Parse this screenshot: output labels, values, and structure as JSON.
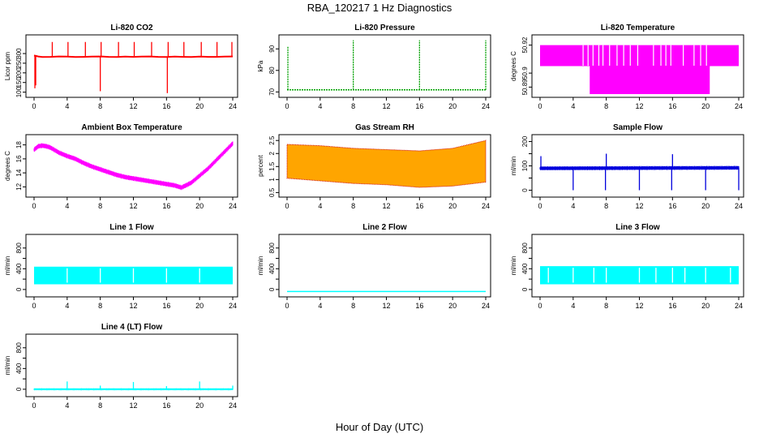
{
  "title": "RBA_120217  1 Hz Diagnostics",
  "xlabel": "Hour of Day (UTC)",
  "x_ticks": [
    0,
    4,
    8,
    12,
    16,
    20,
    24
  ],
  "chart_data": [
    {
      "id": "co2",
      "type": "line",
      "title": "Li-820 CO2",
      "ylabel": "Licor ppm",
      "color": "#ff0000",
      "xlim": [
        0,
        24
      ],
      "ylim": [
        90,
        380
      ],
      "yticks": [
        100,
        150,
        200,
        250,
        300
      ],
      "series": [
        {
          "x": [
            0,
            0.5,
            1,
            2,
            3,
            4,
            5,
            6,
            7,
            8,
            9,
            10,
            11,
            12,
            13,
            14,
            15,
            16,
            17,
            18,
            19,
            20,
            21,
            22,
            23,
            24
          ],
          "y": [
            290,
            285,
            282,
            283,
            285,
            284,
            282,
            283,
            284,
            285,
            283,
            282,
            284,
            283,
            284,
            285,
            283,
            282,
            284,
            283,
            282,
            284,
            283,
            283,
            284,
            285
          ]
        }
      ],
      "spikes": [
        {
          "x": 0.1,
          "y": 120
        },
        {
          "x": 0.2,
          "y": 135
        },
        {
          "x": 2.2,
          "y": 360
        },
        {
          "x": 4.1,
          "y": 360
        },
        {
          "x": 6.2,
          "y": 360
        },
        {
          "x": 8.0,
          "y": 105
        },
        {
          "x": 8.1,
          "y": 360
        },
        {
          "x": 10.2,
          "y": 360
        },
        {
          "x": 12.1,
          "y": 360
        },
        {
          "x": 14.2,
          "y": 360
        },
        {
          "x": 16.1,
          "y": 95
        },
        {
          "x": 16.2,
          "y": 360
        },
        {
          "x": 18.1,
          "y": 360
        },
        {
          "x": 20.2,
          "y": 360
        },
        {
          "x": 22.1,
          "y": 360
        },
        {
          "x": 23.9,
          "y": 360
        }
      ]
    },
    {
      "id": "pressure",
      "type": "line",
      "title": "Li-820 Pressure",
      "ylabel": "kPa",
      "color": "#00a000",
      "xlim": [
        0,
        24
      ],
      "ylim": [
        69,
        95
      ],
      "yticks": [
        70,
        80,
        90
      ],
      "series": [
        {
          "x": [
            0,
            24
          ],
          "y": [
            71,
            71
          ]
        }
      ],
      "spikes": [
        {
          "x": 0.1,
          "y": 91
        },
        {
          "x": 8.0,
          "y": 94
        },
        {
          "x": 16.0,
          "y": 94
        },
        {
          "x": 24.0,
          "y": 94
        }
      ]
    },
    {
      "id": "licor_temp",
      "type": "area",
      "title": "Li-820 Temperature",
      "ylabel": "degrees C",
      "color": "#ff00ff",
      "xlim": [
        0,
        24
      ],
      "ylim": [
        50.885,
        50.925
      ],
      "yticks": [
        50.89,
        50.9,
        50.92
      ],
      "ytick_labels": [
        "50.89",
        "50.9",
        "50.92"
      ],
      "levels": {
        "upper": 50.92,
        "mid": 50.905,
        "lower": 50.885
      },
      "lower_band": [
        6,
        20.5
      ],
      "gaps": [
        5.2,
        5.8,
        6.4,
        7.1,
        7.6,
        8.4,
        9.3,
        10.1,
        10.9,
        11.8,
        13.7,
        14.6,
        15.2,
        15.8,
        17.3,
        18.6,
        19.4,
        20.1
      ]
    },
    {
      "id": "ambient_temp",
      "type": "line",
      "title": "Ambient Box Temperature",
      "ylabel": "degrees C",
      "color": "#ff00ff",
      "xlim": [
        0,
        24
      ],
      "ylim": [
        11,
        19
      ],
      "yticks": [
        12,
        14,
        16,
        18
      ],
      "series": [
        {
          "x": [
            0,
            0.5,
            1,
            1.5,
            2,
            3,
            4,
            5,
            6,
            7,
            8,
            9,
            10,
            11,
            12,
            13,
            14,
            15,
            16,
            17,
            17.8,
            18.5,
            19,
            20,
            21,
            22,
            23,
            24
          ],
          "y": [
            17.3,
            17.8,
            17.9,
            17.8,
            17.6,
            16.9,
            16.4,
            16.0,
            15.4,
            14.9,
            14.5,
            14.1,
            13.7,
            13.4,
            13.2,
            13.0,
            12.8,
            12.6,
            12.4,
            12.2,
            11.9,
            12.3,
            12.6,
            13.6,
            14.6,
            15.8,
            17.0,
            18.2
          ]
        }
      ],
      "band": 0.35
    },
    {
      "id": "rh",
      "type": "area",
      "title": "Gas Stream RH",
      "ylabel": "percent",
      "color": "#ffa500",
      "edge_color": "#cc0000",
      "xlim": [
        0,
        24
      ],
      "ylim": [
        0.45,
        2.6
      ],
      "yticks": [
        0.5,
        1.0,
        1.5,
        2.0,
        2.5
      ],
      "ytick_labels": [
        "0.5",
        "1",
        "1.5",
        "2",
        "2.5"
      ],
      "upper": {
        "x": [
          0,
          4,
          8,
          12,
          16,
          20,
          24
        ],
        "y": [
          2.35,
          2.3,
          2.2,
          2.15,
          2.1,
          2.2,
          2.5
        ]
      },
      "lower": {
        "x": [
          0,
          4,
          8,
          12,
          16,
          20,
          24
        ],
        "y": [
          1.05,
          0.95,
          0.85,
          0.8,
          0.7,
          0.75,
          0.9
        ]
      }
    },
    {
      "id": "sample_flow",
      "type": "line",
      "title": "Sample Flow",
      "ylabel": "ml/min",
      "color": "#0000dd",
      "xlim": [
        0,
        24
      ],
      "ylim": [
        -15,
        215
      ],
      "yticks": [
        0,
        50,
        100,
        150,
        200
      ],
      "ytick_labels": [
        "0",
        "",
        "100",
        "",
        "200"
      ],
      "series": [
        {
          "x": [
            0,
            24
          ],
          "y": [
            90,
            92
          ]
        }
      ],
      "band": 8,
      "spikes": [
        {
          "x": 0.1,
          "y": 140
        },
        {
          "x": 4.0,
          "y": 0
        },
        {
          "x": 7.9,
          "y": 0
        },
        {
          "x": 8.0,
          "y": 150
        },
        {
          "x": 12.0,
          "y": 0
        },
        {
          "x": 15.9,
          "y": 0
        },
        {
          "x": 16.0,
          "y": 148
        },
        {
          "x": 20.0,
          "y": 0
        },
        {
          "x": 24.0,
          "y": 0
        }
      ]
    },
    {
      "id": "line1",
      "type": "area",
      "title": "Line 1 Flow",
      "ylabel": "ml/min",
      "color": "#00ffff",
      "xlim": [
        0,
        24
      ],
      "ylim": [
        -80,
        1000
      ],
      "yticks": [
        0,
        200,
        400,
        600,
        800
      ],
      "ytick_labels": [
        "0",
        "",
        "400",
        "",
        "800"
      ],
      "fill": [
        100,
        440
      ],
      "gaps": [
        4.0,
        8.0,
        12.0,
        16.0,
        20.0
      ]
    },
    {
      "id": "line2",
      "type": "line",
      "title": "Line 2 Flow",
      "ylabel": "ml/min",
      "color": "#00ffff",
      "xlim": [
        0,
        24
      ],
      "ylim": [
        -80,
        1000
      ],
      "yticks": [
        0,
        200,
        400,
        600,
        800
      ],
      "ytick_labels": [
        "0",
        "",
        "400",
        "",
        "800"
      ],
      "series": [
        {
          "x": [
            0,
            24
          ],
          "y": [
            -40,
            -40
          ]
        }
      ]
    },
    {
      "id": "line3",
      "type": "area",
      "title": "Line 3 Flow",
      "ylabel": "ml/min",
      "color": "#00ffff",
      "xlim": [
        0,
        24
      ],
      "ylim": [
        -80,
        1000
      ],
      "yticks": [
        0,
        200,
        400,
        600,
        800
      ],
      "ytick_labels": [
        "0",
        "",
        "400",
        "",
        "800"
      ],
      "fill": [
        100,
        450
      ],
      "gaps": [
        1.0,
        4.0,
        6.5,
        8.0,
        12.0,
        14.0,
        16.0,
        17.5,
        20.0,
        23.0
      ]
    },
    {
      "id": "line4",
      "type": "line",
      "title": "Line 4 (LT) Flow",
      "ylabel": "ml/min",
      "color": "#00ffff",
      "xlim": [
        0,
        24
      ],
      "ylim": [
        -80,
        1000
      ],
      "yticks": [
        0,
        200,
        400,
        600,
        800
      ],
      "ytick_labels": [
        "0",
        "",
        "400",
        "",
        "800"
      ],
      "series": [
        {
          "x": [
            0,
            24
          ],
          "y": [
            0,
            0
          ]
        }
      ],
      "band": 20,
      "spikes": [
        {
          "x": 4.0,
          "y": 150
        },
        {
          "x": 8.0,
          "y": 70
        },
        {
          "x": 12.0,
          "y": 140
        },
        {
          "x": 16.0,
          "y": 60
        },
        {
          "x": 20.0,
          "y": 150
        },
        {
          "x": 24.0,
          "y": 70
        }
      ]
    }
  ]
}
